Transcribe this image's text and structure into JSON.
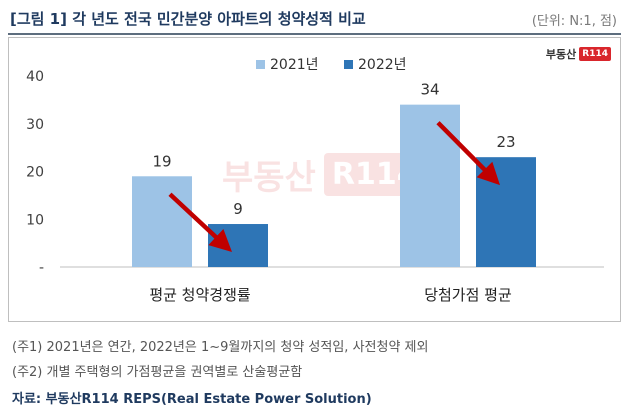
{
  "title": "[그림 1] 각 년도 전국 민간분양 아파트의 청약성적 비교",
  "unit": "(단위: N:1, 점)",
  "brand": {
    "text": "부동산",
    "box": "R114"
  },
  "colors": {
    "series_2021": "#9dc3e6",
    "series_2022": "#2e75b6",
    "arrow": "#c00000",
    "title": "#1f3a5f"
  },
  "chart_data": {
    "type": "bar",
    "categories": [
      "평균 청약경쟁률",
      "당첨가점 평균"
    ],
    "series": [
      {
        "name": "2021년",
        "values": [
          19,
          34
        ]
      },
      {
        "name": "2022년",
        "values": [
          9,
          23
        ]
      }
    ],
    "ylim": [
      0,
      40
    ],
    "yticks": [
      "-",
      "10",
      "20",
      "30",
      "40"
    ],
    "legend": "top-center",
    "grid": false,
    "annotations": [
      "down-arrow",
      "down-arrow"
    ]
  },
  "notes": [
    "(주1) 2021년은 연간, 2022년은 1~9월까지의 청약 성적임, 사전청약 제외",
    "(주2) 개별 주택형의 가점평균을 권역별로 산술평균함"
  ],
  "source": "자료: 부동산R114 REPS(Real Estate Power Solution)"
}
